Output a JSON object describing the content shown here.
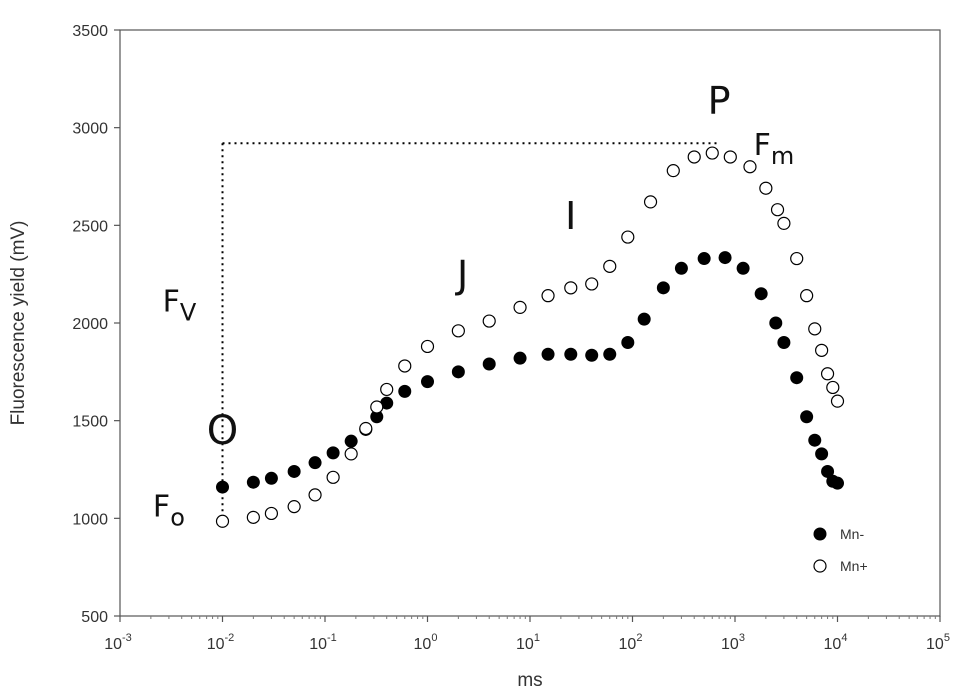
{
  "chart_data": {
    "type": "scatter",
    "title": "",
    "xlabel": "ms",
    "ylabel": "Fluorescence yield (mV)",
    "x_scale": "log",
    "xlim": [
      0.001,
      100000
    ],
    "ylim": [
      500,
      3500
    ],
    "x_ticks": [
      {
        "value": 0.001,
        "base": "10",
        "exp": "-3"
      },
      {
        "value": 0.01,
        "base": "10",
        "exp": "-2"
      },
      {
        "value": 0.1,
        "base": "10",
        "exp": "-1"
      },
      {
        "value": 1,
        "base": "10",
        "exp": "0"
      },
      {
        "value": 10,
        "base": "10",
        "exp": "1"
      },
      {
        "value": 100,
        "base": "10",
        "exp": "2"
      },
      {
        "value": 1000,
        "base": "10",
        "exp": "3"
      },
      {
        "value": 10000,
        "base": "10",
        "exp": "4"
      },
      {
        "value": 100000,
        "base": "10",
        "exp": "5"
      }
    ],
    "y_ticks": [
      500,
      1000,
      1500,
      2000,
      2500,
      3000,
      3500
    ],
    "grid": false,
    "legend_position": "bottom-right",
    "series": [
      {
        "name": "Mn-",
        "marker": "filled-circle",
        "color": "#000000",
        "points": [
          [
            0.01,
            1160
          ],
          [
            0.02,
            1185
          ],
          [
            0.03,
            1205
          ],
          [
            0.05,
            1240
          ],
          [
            0.08,
            1285
          ],
          [
            0.12,
            1335
          ],
          [
            0.18,
            1395
          ],
          [
            0.25,
            1455
          ],
          [
            0.32,
            1520
          ],
          [
            0.4,
            1590
          ],
          [
            0.6,
            1650
          ],
          [
            1,
            1700
          ],
          [
            2,
            1750
          ],
          [
            4,
            1790
          ],
          [
            8,
            1820
          ],
          [
            15,
            1840
          ],
          [
            25,
            1840
          ],
          [
            40,
            1835
          ],
          [
            60,
            1840
          ],
          [
            90,
            1900
          ],
          [
            130,
            2020
          ],
          [
            200,
            2180
          ],
          [
            300,
            2280
          ],
          [
            500,
            2330
          ],
          [
            800,
            2335
          ],
          [
            1200,
            2280
          ],
          [
            1800,
            2150
          ],
          [
            2500,
            2000
          ],
          [
            3000,
            1900
          ],
          [
            4000,
            1720
          ],
          [
            5000,
            1520
          ],
          [
            6000,
            1400
          ],
          [
            7000,
            1330
          ],
          [
            8000,
            1240
          ],
          [
            9000,
            1190
          ],
          [
            10000,
            1180
          ]
        ]
      },
      {
        "name": "Mn+",
        "marker": "open-circle",
        "color": "#000000",
        "points": [
          [
            0.01,
            985
          ],
          [
            0.02,
            1005
          ],
          [
            0.03,
            1025
          ],
          [
            0.05,
            1060
          ],
          [
            0.08,
            1120
          ],
          [
            0.12,
            1210
          ],
          [
            0.18,
            1330
          ],
          [
            0.25,
            1460
          ],
          [
            0.32,
            1570
          ],
          [
            0.4,
            1660
          ],
          [
            0.6,
            1780
          ],
          [
            1,
            1880
          ],
          [
            2,
            1960
          ],
          [
            4,
            2010
          ],
          [
            8,
            2080
          ],
          [
            15,
            2140
          ],
          [
            25,
            2180
          ],
          [
            40,
            2200
          ],
          [
            60,
            2290
          ],
          [
            90,
            2440
          ],
          [
            150,
            2620
          ],
          [
            250,
            2780
          ],
          [
            400,
            2850
          ],
          [
            600,
            2870
          ],
          [
            900,
            2850
          ],
          [
            1400,
            2800
          ],
          [
            2000,
            2690
          ],
          [
            2600,
            2580
          ],
          [
            3000,
            2510
          ],
          [
            4000,
            2330
          ],
          [
            5000,
            2140
          ],
          [
            6000,
            1970
          ],
          [
            7000,
            1860
          ],
          [
            8000,
            1740
          ],
          [
            9000,
            1670
          ],
          [
            10000,
            1600
          ]
        ]
      }
    ],
    "annotations": {
      "O": {
        "text": "O",
        "x": 0.01,
        "y": 1380
      },
      "J": {
        "text": "J",
        "x": 2.2,
        "y": 2180
      },
      "I": {
        "text": "I",
        "x": 25,
        "y": 2480
      },
      "P": {
        "text": "P",
        "x": 700,
        "y": 3070
      },
      "Fo": {
        "text": "F",
        "sub": "o",
        "x": 0.003,
        "y": 1010
      },
      "Fv": {
        "text": "F",
        "sub": "V",
        "x": 0.0038,
        "y": 2060
      },
      "Fm": {
        "text": "F",
        "sub": "m",
        "x": 2400,
        "y": 2860
      }
    },
    "reference_lines": {
      "Fo_level": 985,
      "Fm_level": 2920,
      "x_start": 0.01,
      "x_end": 700
    }
  }
}
